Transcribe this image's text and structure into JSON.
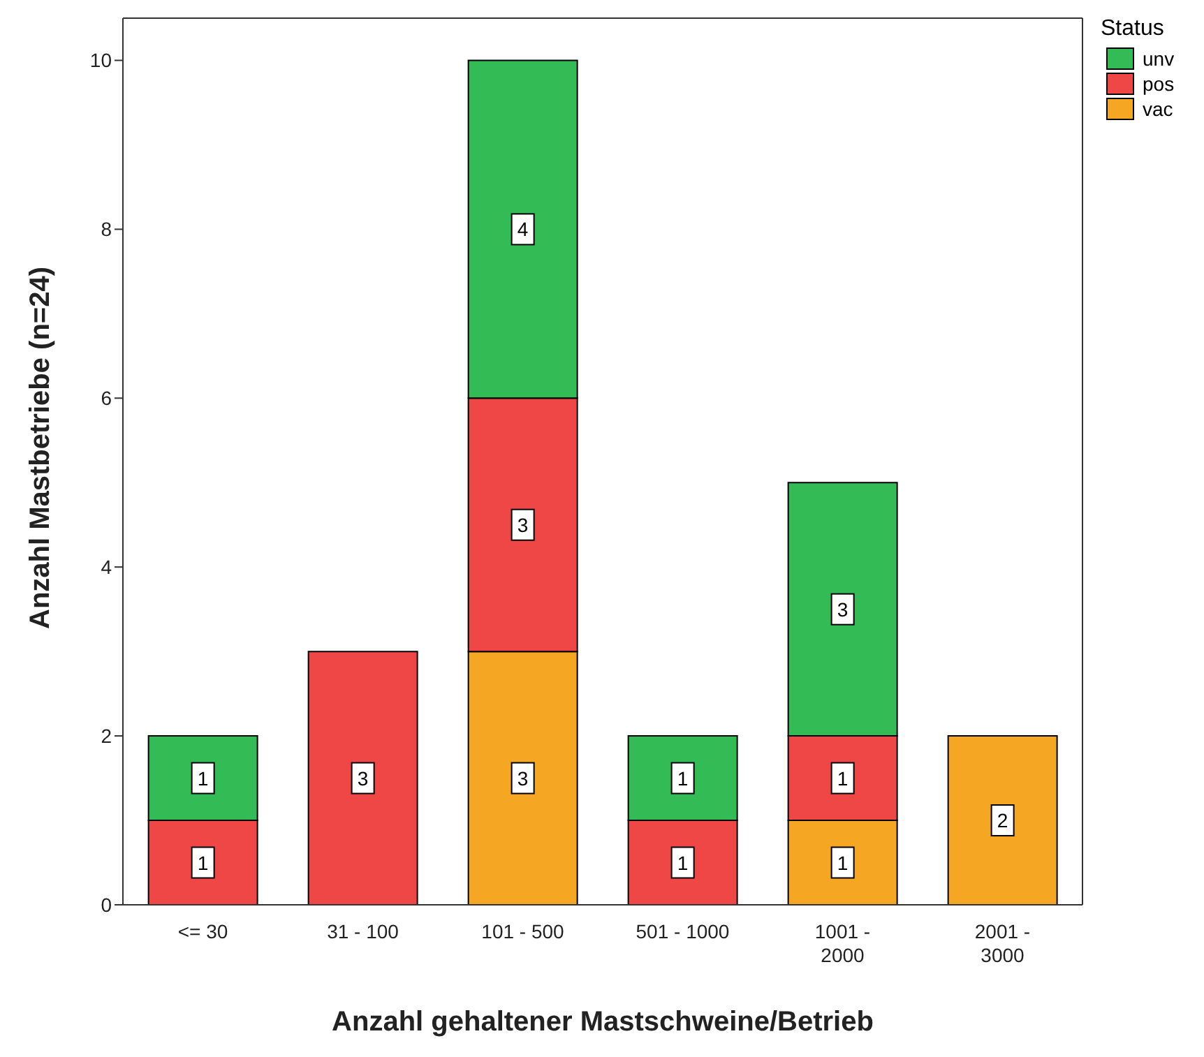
{
  "chart_data": {
    "type": "bar",
    "stacked": true,
    "xlabel": "Anzahl gehaltener Mastschweine/Betrieb",
    "ylabel": "Anzahl Mastbetriebe (n=24)",
    "legend_title": "Status",
    "legend": "top right",
    "data_labels": true,
    "categories": [
      "<= 30",
      "31 - 100",
      "101 - 500",
      "501 - 1000",
      "1001 - 2000",
      "2001 - 3000"
    ],
    "series": [
      {
        "name": "vac",
        "color": "#f5a623",
        "values": [
          null,
          null,
          3,
          null,
          1,
          2
        ]
      },
      {
        "name": "pos",
        "color": "#ef4646",
        "values": [
          1,
          3,
          3,
          1,
          1,
          null
        ]
      },
      {
        "name": "unv",
        "color": "#33bb55",
        "values": [
          1,
          null,
          4,
          1,
          3,
          null
        ]
      }
    ],
    "ylim": [
      0,
      10.5
    ],
    "yticks": [
      0,
      2,
      4,
      6,
      8,
      10
    ]
  }
}
